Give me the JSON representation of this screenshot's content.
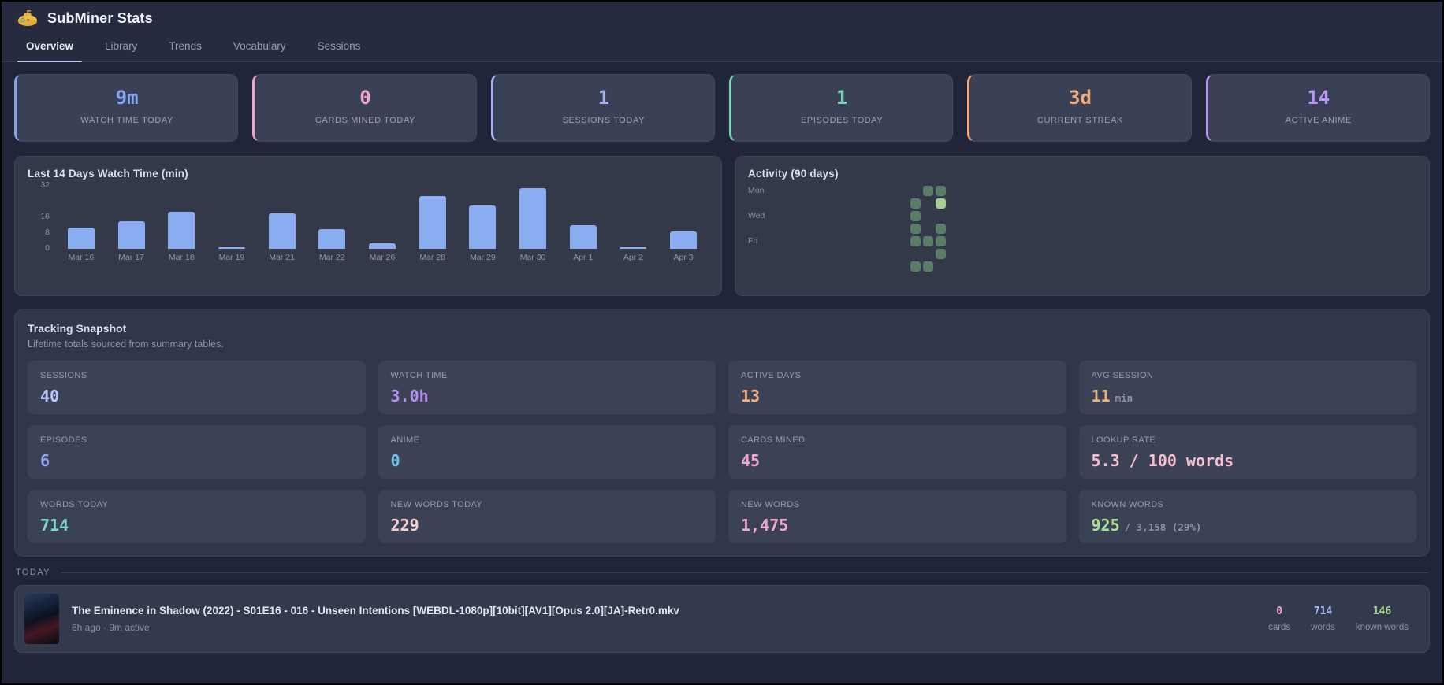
{
  "app": {
    "title": "SubMiner Stats"
  },
  "tabs": [
    {
      "label": "Overview",
      "active": true
    },
    {
      "label": "Library",
      "active": false
    },
    {
      "label": "Trends",
      "active": false
    },
    {
      "label": "Vocabulary",
      "active": false
    },
    {
      "label": "Sessions",
      "active": false
    }
  ],
  "stat_cards": [
    {
      "value": "9m",
      "label": "WATCH TIME TODAY",
      "color": "#82a3ee"
    },
    {
      "value": "0",
      "label": "CARDS MINED TODAY",
      "color": "#efa6cb"
    },
    {
      "value": "1",
      "label": "SESSIONS TODAY",
      "color": "#a9b3f2"
    },
    {
      "value": "1",
      "label": "EPISODES TODAY",
      "color": "#74d3b4"
    },
    {
      "value": "3d",
      "label": "CURRENT STREAK",
      "color": "#f0aa7c"
    },
    {
      "value": "14",
      "label": "ACTIVE ANIME",
      "color": "#bb95f2"
    }
  ],
  "chart_data": {
    "type": "bar",
    "title": "Last 14 Days Watch Time (min)",
    "categories": [
      "Mar 16",
      "Mar 17",
      "Mar 18",
      "Mar 19",
      "Mar 21",
      "Mar 22",
      "Mar 26",
      "Mar 28",
      "Mar 29",
      "Mar 30",
      "Apr 1",
      "Apr 2",
      "Apr 3"
    ],
    "values": [
      11,
      14,
      19,
      1,
      18,
      10,
      3,
      27,
      22,
      31,
      12,
      1,
      9
    ],
    "xlabel": "",
    "ylabel": "",
    "ylim": [
      0,
      32
    ],
    "yticks": [
      32,
      16,
      8,
      0
    ],
    "bar_color": "#8aacf0",
    "grid": false,
    "legend": "none"
  },
  "activity": {
    "title": "Activity (90 days)",
    "day_labels": [
      "Mon",
      "Wed",
      "Fri"
    ],
    "columns": 13,
    "rows": 7,
    "grid_levels": [
      [
        0,
        0,
        0,
        0,
        0,
        0,
        0,
        0,
        0,
        0,
        0,
        1,
        1
      ],
      [
        0,
        0,
        0,
        0,
        0,
        0,
        0,
        0,
        0,
        0,
        1,
        0,
        2
      ],
      [
        0,
        0,
        0,
        0,
        0,
        0,
        0,
        0,
        0,
        0,
        1,
        0,
        0
      ],
      [
        0,
        0,
        0,
        0,
        0,
        0,
        0,
        0,
        0,
        0,
        1,
        0,
        1
      ],
      [
        0,
        0,
        0,
        0,
        0,
        0,
        0,
        0,
        0,
        0,
        1,
        1,
        1
      ],
      [
        0,
        0,
        0,
        0,
        0,
        0,
        0,
        0,
        0,
        0,
        0,
        0,
        1
      ],
      [
        0,
        0,
        0,
        0,
        0,
        0,
        0,
        0,
        0,
        0,
        1,
        1,
        0
      ]
    ],
    "cell_color": "#5d7c68",
    "cell_color_bright": "#a7cc96"
  },
  "snapshot": {
    "title": "Tracking Snapshot",
    "subtitle": "Lifetime totals sourced from summary tables.",
    "cards": [
      {
        "label": "SESSIONS",
        "value": "40",
        "suffix": "",
        "color": "#bcc3f8"
      },
      {
        "label": "WATCH TIME",
        "value": "3.0h",
        "suffix": "",
        "color": "#b48ff2"
      },
      {
        "label": "ACTIVE DAYS",
        "value": "13",
        "suffix": "",
        "color": "#f2b07c"
      },
      {
        "label": "AVG SESSION",
        "value": "11",
        "suffix": "min",
        "color": "#f2b07c"
      },
      {
        "label": "EPISODES",
        "value": "6",
        "suffix": "",
        "color": "#8fa9f2"
      },
      {
        "label": "ANIME",
        "value": "0",
        "suffix": "",
        "color": "#6fc0f0"
      },
      {
        "label": "CARDS MINED",
        "value": "45",
        "suffix": "",
        "color": "#f0a6cb"
      },
      {
        "label": "LOOKUP RATE",
        "value": "5.3 / 100 words",
        "suffix": "",
        "color": "#f4becf"
      },
      {
        "label": "WORDS TODAY",
        "value": "714",
        "suffix": "",
        "color": "#79d3cf"
      },
      {
        "label": "NEW WORDS TODAY",
        "value": "229",
        "suffix": "",
        "color": "#f6ccd2"
      },
      {
        "label": "NEW WORDS",
        "value": "1,475",
        "suffix": "",
        "color": "#f0a6cb"
      },
      {
        "label": "KNOWN WORDS",
        "value": "925",
        "suffix": "/ 3,158 (29%)",
        "color": "#a9df92"
      }
    ]
  },
  "today": {
    "section_label": "TODAY",
    "episode": {
      "title": "The Eminence in Shadow (2022) - S01E16 - 016 - Unseen Intentions [WEBDL-1080p][10bit][AV1][Opus 2.0][JA]-Retr0.mkv",
      "meta": "6h ago · 9m active",
      "stats": [
        {
          "value": "0",
          "label": "cards",
          "color": "#efa6cb"
        },
        {
          "value": "714",
          "label": "words",
          "color": "#a9b3f2"
        },
        {
          "value": "146",
          "label": "known words",
          "color": "#9ed88f"
        }
      ]
    }
  }
}
